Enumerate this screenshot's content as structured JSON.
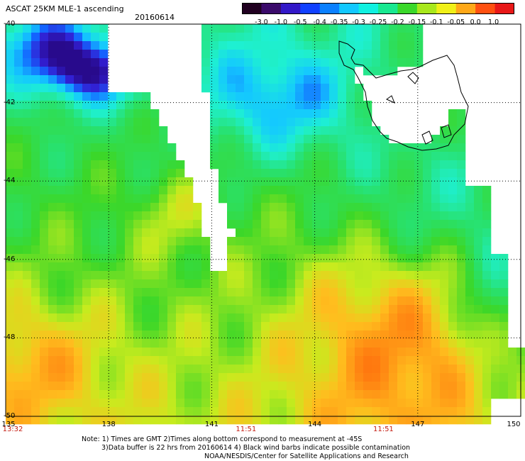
{
  "header": {
    "title": "ASCAT 25KM MLE-1 ascending",
    "date": "20160614"
  },
  "colorbar": {
    "labels": [
      "-3.0",
      "-1.0",
      "-0.5",
      "-0.4",
      "-0.35",
      "-0.3",
      "-0.25",
      "-0.2",
      "-0.15",
      "-0.1",
      "-0.05",
      "0.0",
      "1.0"
    ],
    "colors": [
      "#200020",
      "#3a0a6a",
      "#3218c8",
      "#1040ff",
      "#0a80ff",
      "#12c8ff",
      "#10f0e0",
      "#18e890",
      "#3ad82a",
      "#a8e81c",
      "#f0f018",
      "#ffa818",
      "#ff5010",
      "#e81818"
    ]
  },
  "map": {
    "lat_labels": [
      "-40",
      "-42",
      "-44",
      "-46",
      "-48",
      "-50"
    ],
    "lon_labels": [
      "135",
      "138",
      "141",
      "144",
      "147",
      "150"
    ],
    "lon_values": [
      135,
      138,
      141,
      144,
      147,
      150
    ],
    "lat_values": [
      -40,
      -42,
      -44,
      -46,
      -48,
      -50
    ],
    "time_labels": [
      "13:32",
      "11:51",
      "11:51"
    ],
    "time_lons": [
      135,
      142,
      146
    ]
  },
  "notes": {
    "line1": "Note: 1) Times are GMT 2)Times along bottom correspond to measurement at -45S",
    "line2": "3)Data buffer is 22 hrs from 20160614 4) Black wind barbs indicate possible contamination",
    "line3": "NOAA/NESDIS/Center for Satellite Applications and Research"
  }
}
